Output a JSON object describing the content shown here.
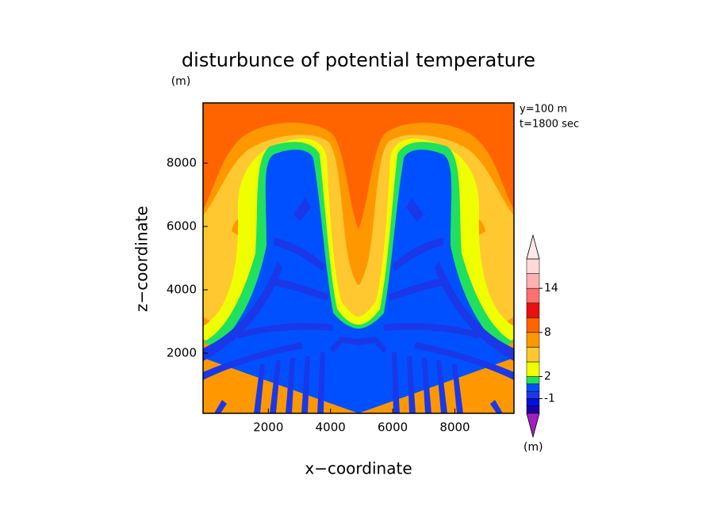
{
  "chart_data": {
    "type": "contour",
    "title": "disturbunce of potential temperature",
    "unit_label": "(m)",
    "xlabel": "x−coordinate",
    "ylabel": "z−coordinate",
    "annotations": [
      "y=100 m",
      "t=1800 sec"
    ],
    "xlim": [
      -100,
      9900
    ],
    "ylim": [
      100,
      9900
    ],
    "xticks": [
      2000,
      4000,
      6000,
      8000
    ],
    "yticks": [
      2000,
      4000,
      6000,
      8000
    ],
    "colorbar": {
      "unit_label": "(m)",
      "lim": [
        -3,
        18
      ],
      "levels": [
        -3,
        -2,
        -1,
        0,
        1,
        2,
        4,
        6,
        8,
        10,
        12,
        14,
        16,
        18
      ],
      "colors": [
        "#1800a8",
        "#0010e0",
        "#1a38e8",
        "#0050ff",
        "#20e060",
        "#f0ff00",
        "#ffc830",
        "#ff9800",
        "#ff6400",
        "#e81010",
        "#ff7070",
        "#ffb0b0",
        "#ffd8d8"
      ],
      "under_color": "#a020c0",
      "over_color": "#ffe8e8",
      "ticks": [
        14,
        8,
        2,
        -1
      ]
    }
  }
}
